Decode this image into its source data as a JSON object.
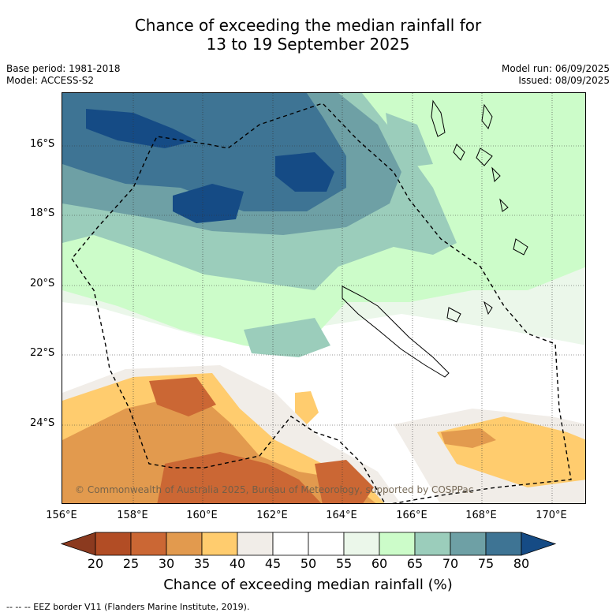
{
  "title_line1": "Chance of exceeding the median rainfall for",
  "title_line2": "13 to 19 September 2025",
  "meta_left": [
    "Base period: 1981-2018",
    "Model: ACCESS-S2"
  ],
  "meta_right": [
    "Model run: 06/09/2025",
    "Issued: 08/09/2025"
  ],
  "lat_labels": [
    "16°S",
    "18°S",
    "20°S",
    "22°S",
    "24°S"
  ],
  "lon_labels": [
    "156°E",
    "158°E",
    "160°E",
    "162°E",
    "164°E",
    "166°E",
    "168°E",
    "170°E"
  ],
  "copyright": "© Commonwealth of Australia 2025, Bureau of Meteorology, supported by COSPPac",
  "colorbar": {
    "title": "Chance of exceeding median rainfall (%)",
    "ticks": [
      "20",
      "25",
      "30",
      "35",
      "40",
      "45",
      "50",
      "55",
      "60",
      "65",
      "70",
      "75",
      "80"
    ],
    "colors": [
      "#8b3a1f",
      "#b24d25",
      "#cb6734",
      "#e29a4e",
      "#ffcc6e",
      "#f1ede8",
      "#ffffff",
      "#ffffff",
      "#ebf7ea",
      "#ccfcc9",
      "#9bcdbb",
      "#6ea0a5",
      "#3e7494",
      "#154b85"
    ]
  },
  "footer": "--  --  -- EEZ border V11 (Flanders Marine Institute, 2019)."
}
